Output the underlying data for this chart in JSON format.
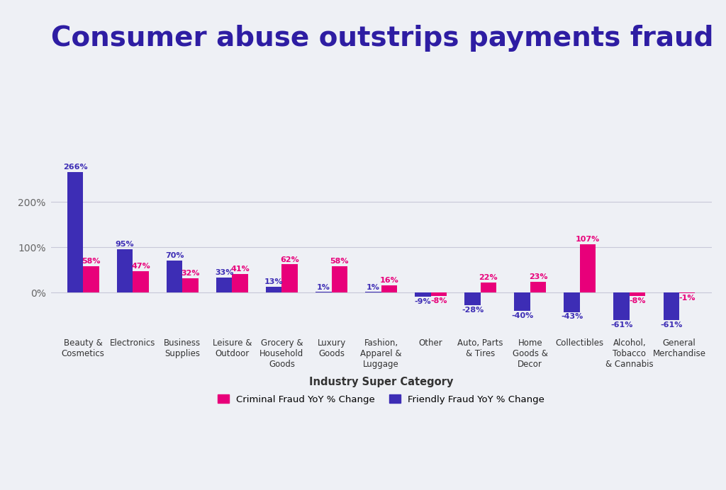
{
  "title": "Consumer abuse outstrips payments fraud",
  "xlabel": "Industry Super Category",
  "background_color": "#eef0f5",
  "categories": [
    "Beauty &\nCosmetics",
    "Electronics",
    "Business\nSupplies",
    "Leisure &\nOutdoor",
    "Grocery &\nHousehold\nGoods",
    "Luxury\nGoods",
    "Fashion,\nApparel &\nLuggage",
    "Other",
    "Auto, Parts\n& Tires",
    "Home\nGoods &\nDecor",
    "Collectibles",
    "Alcohol,\nTobacco\n& Cannabis",
    "General\nMerchandise"
  ],
  "criminal_fraud": [
    58,
    47,
    32,
    41,
    62,
    58,
    16,
    -8,
    22,
    23,
    107,
    -8,
    -1
  ],
  "friendly_fraud": [
    266,
    95,
    70,
    33,
    13,
    1,
    1,
    -9,
    -28,
    -40,
    -43,
    -61,
    -61
  ],
  "criminal_color": "#E8007A",
  "friendly_color": "#3D2DB5",
  "title_color": "#2E1DA3",
  "label_fontsize": 8,
  "title_fontsize": 28,
  "bar_width": 0.32,
  "ylim": [
    -90,
    300
  ],
  "grid_color": "#c8c8d8",
  "legend_criminal": "Criminal Fraud YoY % Change",
  "legend_friendly": "Friendly Fraud YoY % Change"
}
